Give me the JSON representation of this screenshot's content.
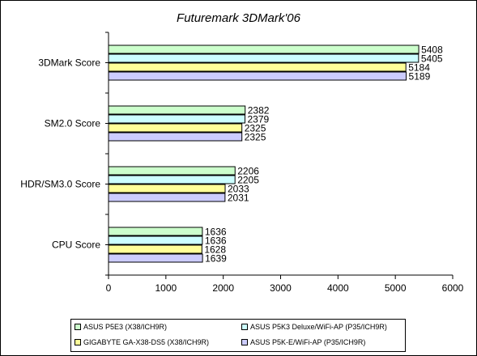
{
  "chart_data": {
    "type": "bar",
    "orientation": "horizontal",
    "title": "Futuremark 3DMark'06",
    "categories": [
      "3DMark Score",
      "SM2.0 Score",
      "HDR/SM3.0 Score",
      "CPU Score"
    ],
    "series": [
      {
        "name": "ASUS P5E3 (X38/ICH9R)",
        "color": "#ccffcc",
        "values": [
          5408,
          2382,
          2206,
          1636
        ]
      },
      {
        "name": "ASUS P5K3 Deluxe/WiFi-AP (P35/ICH9R)",
        "color": "#ccffff",
        "values": [
          5405,
          2379,
          2205,
          1636
        ]
      },
      {
        "name": "GIGABYTE GA-X38-DS5 (X38/ICH9R)",
        "color": "#ffff99",
        "values": [
          5184,
          2325,
          2033,
          1628
        ]
      },
      {
        "name": "ASUS P5K-E/WiFi-AP (P35/ICH9R)",
        "color": "#ccccff",
        "values": [
          5189,
          2325,
          2031,
          1639
        ]
      }
    ],
    "xlim": [
      0,
      6000
    ],
    "xticks": [
      0,
      1000,
      2000,
      3000,
      4000,
      5000,
      6000
    ],
    "grid": false,
    "legend_position": "bottom"
  }
}
